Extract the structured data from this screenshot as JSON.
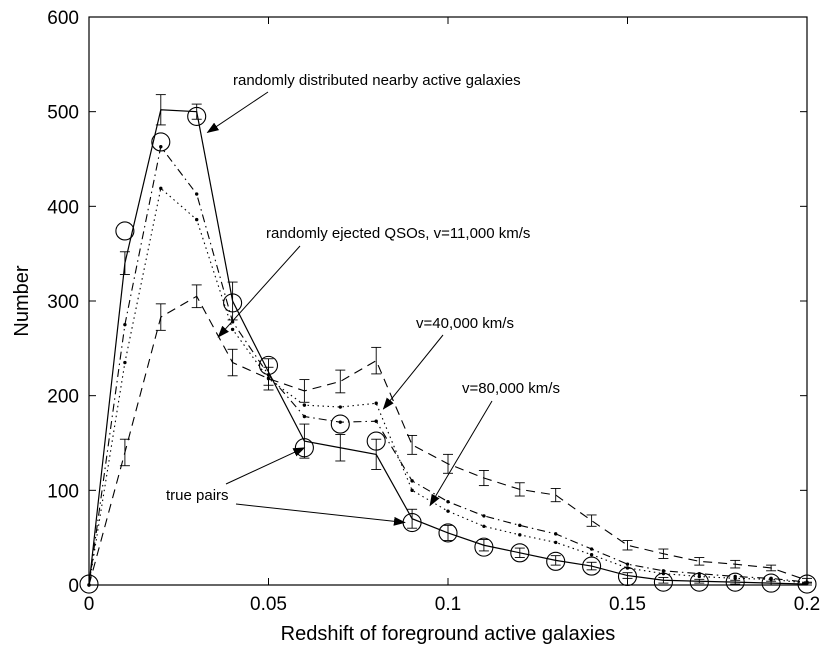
{
  "chart_data": {
    "type": "line",
    "title": "",
    "xlabel": "Redshift of foreground active galaxies",
    "ylabel": "Number",
    "xlim": [
      0,
      0.2
    ],
    "ylim": [
      0,
      600
    ],
    "grid": false,
    "xticks": [
      0,
      0.05,
      0.1,
      0.15,
      0.2
    ],
    "xtick_labels": [
      "0",
      "0.05",
      "0.1",
      "0.15",
      "0.2"
    ],
    "yticks": [
      0,
      100,
      200,
      300,
      400,
      500,
      600
    ],
    "ytick_labels": [
      "0",
      "100",
      "200",
      "300",
      "400",
      "500",
      "600"
    ],
    "x": [
      0,
      0.01,
      0.02,
      0.03,
      0.04,
      0.05,
      0.06,
      0.07,
      0.08,
      0.09,
      0.1,
      0.11,
      0.12,
      0.13,
      0.14,
      0.15,
      0.16,
      0.17,
      0.18,
      0.19,
      0.2
    ],
    "series": [
      {
        "name": "randomly distributed nearby active galaxies",
        "style": "solid",
        "values": [
          0,
          340,
          502,
          500,
          300,
          225,
          152,
          145,
          138,
          70,
          55,
          42,
          34,
          26,
          20,
          10,
          5,
          4,
          3,
          2,
          1
        ],
        "errors": [
          0,
          12,
          16,
          8,
          20,
          14,
          18,
          14,
          16,
          10,
          8,
          6,
          5,
          5,
          4,
          3,
          3,
          2,
          2,
          2,
          1
        ]
      },
      {
        "name": "randomly ejected QSOs, v=11,000 km/s",
        "style": "dashed",
        "values": [
          0,
          140,
          283,
          305,
          235,
          218,
          205,
          215,
          237,
          148,
          128,
          113,
          101,
          95,
          68,
          42,
          33,
          25,
          22,
          18,
          5
        ],
        "errors": [
          0,
          14,
          14,
          12,
          14,
          12,
          12,
          12,
          14,
          10,
          10,
          8,
          7,
          7,
          6,
          5,
          5,
          4,
          4,
          3,
          2
        ]
      },
      {
        "name": "v=40,000 km/s",
        "style": "dashdot",
        "values": [
          0,
          275,
          463,
          413,
          278,
          222,
          178,
          172,
          173,
          110,
          88,
          73,
          63,
          54,
          38,
          22,
          15,
          12,
          9,
          7,
          3
        ],
        "errors": [
          0,
          0,
          0,
          0,
          0,
          0,
          0,
          0,
          0,
          0,
          0,
          0,
          0,
          0,
          0,
          0,
          0,
          0,
          0,
          0,
          0
        ]
      },
      {
        "name": "v=80,000 km/s",
        "style": "dotted",
        "values": [
          0,
          235,
          419,
          386,
          270,
          218,
          190,
          188,
          192,
          100,
          78,
          62,
          53,
          45,
          32,
          18,
          12,
          9,
          7,
          6,
          2
        ],
        "errors": [
          0,
          0,
          0,
          0,
          0,
          0,
          0,
          0,
          0,
          0,
          0,
          0,
          0,
          0,
          0,
          0,
          0,
          0,
          0,
          0,
          0
        ]
      },
      {
        "name": "true pairs",
        "style": "circles",
        "values": [
          1,
          374,
          468,
          495,
          298,
          232,
          145,
          170,
          152,
          66,
          55,
          40,
          34,
          25,
          20,
          9,
          3,
          3,
          3,
          2,
          1
        ],
        "errors": [
          0,
          0,
          0,
          0,
          0,
          0,
          0,
          0,
          0,
          0,
          0,
          0,
          0,
          0,
          0,
          0,
          0,
          0,
          0,
          0,
          0
        ]
      }
    ],
    "annotations": [
      {
        "text": "randomly distributed nearby active galaxies",
        "arrow_to": [
          0.033,
          478
        ]
      },
      {
        "text": "randomly ejected QSOs, v=11,000 km/s",
        "arrow_to": [
          0.036,
          262
        ]
      },
      {
        "text": "v=40,000 km/s",
        "arrow_to": [
          0.082,
          186
        ]
      },
      {
        "text": "v=80,000 km/s",
        "arrow_to": [
          0.095,
          84
        ]
      },
      {
        "text": "true pairs",
        "arrow_to": [
          0.06,
          145
        ]
      },
      {
        "text": "true pairs",
        "arrow_to": [
          0.088,
          66
        ]
      }
    ]
  }
}
